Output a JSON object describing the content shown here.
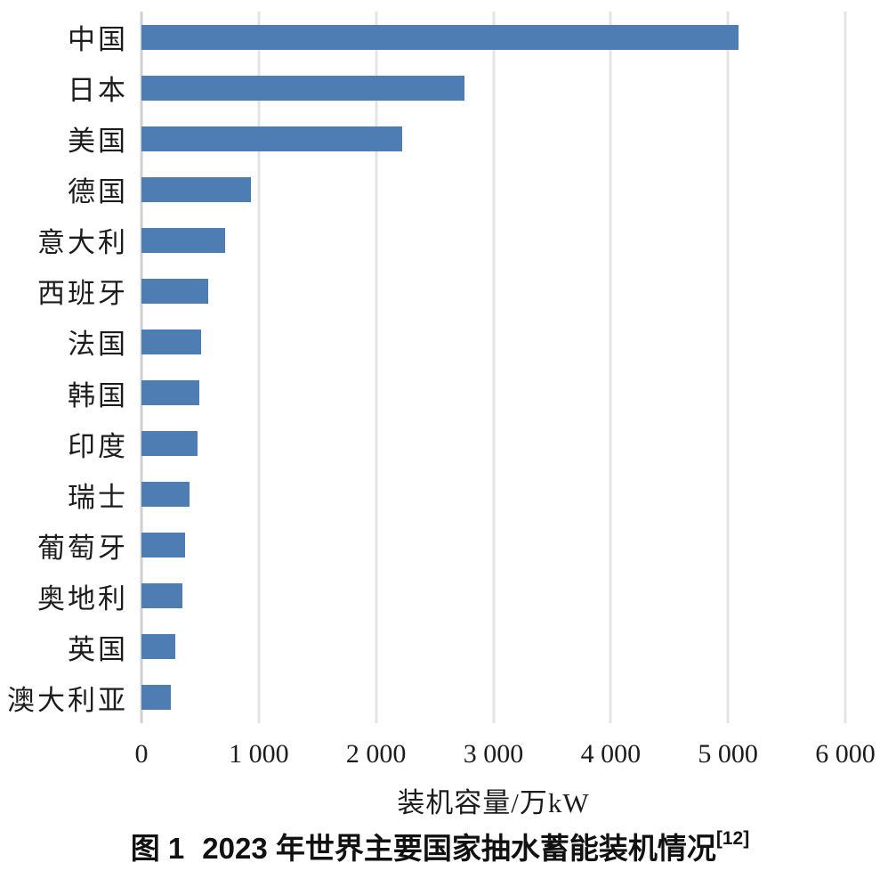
{
  "figure": {
    "caption": {
      "fig_label": "图 1",
      "title": "2023 年世界主要国家抽水蓄能装机情况",
      "reference": "[12]"
    }
  },
  "chart_data": {
    "type": "bar",
    "orientation": "horizontal",
    "title": "",
    "xlabel": "装机容量/万kW",
    "ylabel": "",
    "categories": [
      "中国",
      "日本",
      "美国",
      "德国",
      "意大利",
      "西班牙",
      "法国",
      "韩国",
      "印度",
      "瑞士",
      "葡萄牙",
      "奥地利",
      "英国",
      "澳大利亚"
    ],
    "values": [
      5090,
      2750,
      2220,
      930,
      710,
      570,
      510,
      490,
      480,
      410,
      370,
      350,
      290,
      250
    ],
    "xlim": [
      0,
      6000
    ],
    "x_ticks": [
      0,
      1000,
      2000,
      3000,
      4000,
      5000,
      6000
    ],
    "x_tick_labels": [
      "0",
      "1 000",
      "2 000",
      "3 000",
      "4 000",
      "5 000",
      "6 000"
    ],
    "grid": "vertical-only",
    "legend": "none",
    "bar_color": "#4e7db3",
    "gridline_color": "#e4e4e4",
    "zero_line_color": "#d0d0d0",
    "background_color": "#ffffff"
  }
}
